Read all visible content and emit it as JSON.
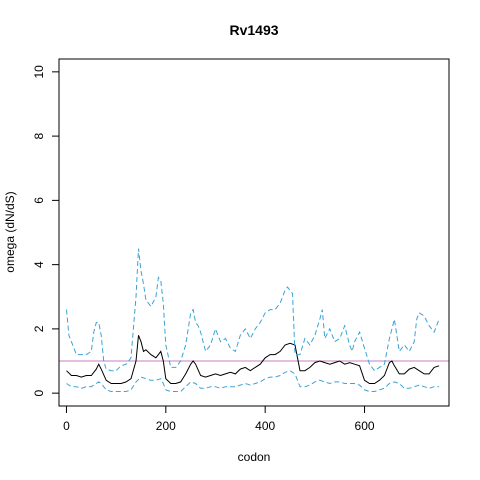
{
  "chart_data": {
    "type": "line",
    "title": "Rv1493",
    "xlabel": "codon",
    "ylabel": "omega (dN/dS)",
    "xlim": [
      -15,
      770
    ],
    "ylim": [
      -0.4,
      10.4
    ],
    "x_ticks": [
      0,
      200,
      400,
      600
    ],
    "y_ticks": [
      0,
      2,
      4,
      6,
      8,
      10
    ],
    "grid": false,
    "legend": "none",
    "reference_line": {
      "y": 1,
      "color": "#c77fc6"
    },
    "series": [
      {
        "style": "solid",
        "color": "#000000",
        "x": [
          0,
          10,
          20,
          30,
          40,
          50,
          60,
          65,
          70,
          80,
          90,
          100,
          110,
          120,
          130,
          140,
          145,
          150,
          155,
          160,
          170,
          180,
          190,
          195,
          200,
          210,
          220,
          230,
          240,
          250,
          255,
          260,
          270,
          280,
          290,
          300,
          310,
          320,
          330,
          340,
          350,
          360,
          370,
          380,
          390,
          400,
          410,
          420,
          430,
          440,
          450,
          460,
          470,
          480,
          490,
          500,
          510,
          520,
          530,
          540,
          550,
          560,
          570,
          580,
          590,
          600,
          610,
          620,
          630,
          640,
          650,
          655,
          660,
          670,
          680,
          690,
          700,
          710,
          720,
          730,
          740,
          750
        ],
        "y": [
          0.7,
          0.55,
          0.55,
          0.5,
          0.55,
          0.55,
          0.75,
          0.9,
          0.75,
          0.4,
          0.3,
          0.3,
          0.3,
          0.35,
          0.45,
          1.0,
          1.8,
          1.6,
          1.3,
          1.35,
          1.2,
          1.1,
          1.3,
          1.0,
          0.45,
          0.3,
          0.3,
          0.35,
          0.6,
          0.9,
          1.0,
          0.9,
          0.55,
          0.5,
          0.55,
          0.6,
          0.55,
          0.6,
          0.65,
          0.6,
          0.75,
          0.8,
          0.7,
          0.8,
          0.9,
          1.1,
          1.2,
          1.2,
          1.3,
          1.5,
          1.55,
          1.5,
          0.7,
          0.7,
          0.8,
          0.95,
          1.0,
          0.95,
          0.9,
          0.95,
          1.0,
          0.9,
          0.95,
          0.9,
          0.85,
          0.4,
          0.3,
          0.3,
          0.4,
          0.55,
          0.95,
          1.0,
          0.85,
          0.6,
          0.6,
          0.75,
          0.8,
          0.7,
          0.6,
          0.6,
          0.8,
          0.85
        ]
      },
      {
        "style": "dashed",
        "color": "#3aa3d9",
        "x": [
          0,
          5,
          10,
          20,
          30,
          40,
          50,
          55,
          60,
          65,
          70,
          75,
          80,
          90,
          100,
          110,
          120,
          130,
          140,
          145,
          150,
          155,
          160,
          170,
          180,
          185,
          190,
          195,
          200,
          210,
          220,
          230,
          240,
          250,
          255,
          260,
          265,
          270,
          280,
          290,
          300,
          310,
          320,
          330,
          340,
          350,
          360,
          370,
          380,
          390,
          400,
          410,
          420,
          430,
          440,
          445,
          450,
          455,
          460,
          470,
          480,
          490,
          500,
          510,
          515,
          520,
          530,
          540,
          550,
          560,
          570,
          575,
          580,
          590,
          600,
          610,
          620,
          630,
          640,
          650,
          660,
          670,
          680,
          690,
          700,
          705,
          710,
          720,
          730,
          740,
          750
        ],
        "y": [
          2.6,
          1.8,
          1.6,
          1.2,
          1.2,
          1.2,
          1.3,
          1.9,
          2.2,
          2.2,
          1.8,
          1.0,
          0.75,
          0.7,
          0.7,
          0.85,
          0.9,
          1.1,
          3.0,
          4.5,
          3.8,
          3.4,
          2.9,
          2.7,
          3.0,
          3.6,
          3.5,
          2.8,
          1.5,
          0.8,
          0.8,
          1.0,
          1.5,
          2.5,
          2.6,
          2.2,
          2.1,
          1.9,
          1.3,
          1.5,
          2.0,
          1.6,
          1.7,
          1.4,
          1.3,
          1.8,
          2.0,
          1.7,
          2.0,
          2.2,
          2.5,
          2.6,
          2.6,
          2.8,
          3.2,
          3.3,
          3.2,
          3.1,
          1.2,
          1.2,
          1.7,
          1.5,
          1.8,
          2.3,
          2.6,
          1.7,
          2.0,
          1.6,
          1.7,
          2.1,
          1.5,
          1.3,
          1.6,
          1.9,
          1.4,
          0.9,
          0.7,
          0.8,
          0.9,
          1.7,
          2.3,
          1.3,
          1.5,
          1.3,
          1.6,
          2.3,
          2.5,
          2.4,
          2.1,
          1.9,
          2.3
        ]
      },
      {
        "style": "dashed",
        "color": "#3aa3d9",
        "x": [
          0,
          10,
          20,
          30,
          40,
          50,
          60,
          65,
          70,
          80,
          90,
          100,
          110,
          120,
          130,
          140,
          150,
          160,
          170,
          180,
          190,
          195,
          200,
          210,
          220,
          230,
          240,
          250,
          260,
          270,
          280,
          290,
          300,
          310,
          320,
          330,
          340,
          350,
          360,
          370,
          380,
          390,
          400,
          410,
          420,
          430,
          440,
          450,
          460,
          470,
          480,
          490,
          500,
          510,
          520,
          530,
          540,
          550,
          560,
          570,
          580,
          590,
          600,
          610,
          620,
          630,
          640,
          650,
          660,
          670,
          680,
          690,
          700,
          710,
          720,
          730,
          740,
          750
        ],
        "y": [
          0.3,
          0.2,
          0.2,
          0.15,
          0.2,
          0.2,
          0.3,
          0.35,
          0.3,
          0.1,
          0.05,
          0.05,
          0.05,
          0.05,
          0.1,
          0.35,
          0.5,
          0.45,
          0.4,
          0.4,
          0.45,
          0.3,
          0.1,
          0.05,
          0.05,
          0.05,
          0.2,
          0.35,
          0.3,
          0.15,
          0.15,
          0.2,
          0.2,
          0.15,
          0.2,
          0.2,
          0.2,
          0.25,
          0.3,
          0.25,
          0.3,
          0.35,
          0.45,
          0.5,
          0.5,
          0.55,
          0.65,
          0.7,
          0.6,
          0.2,
          0.2,
          0.25,
          0.35,
          0.4,
          0.35,
          0.3,
          0.35,
          0.35,
          0.3,
          0.3,
          0.3,
          0.25,
          0.1,
          0.05,
          0.05,
          0.1,
          0.15,
          0.3,
          0.35,
          0.3,
          0.15,
          0.15,
          0.2,
          0.25,
          0.2,
          0.15,
          0.2,
          0.2
        ]
      }
    ]
  }
}
